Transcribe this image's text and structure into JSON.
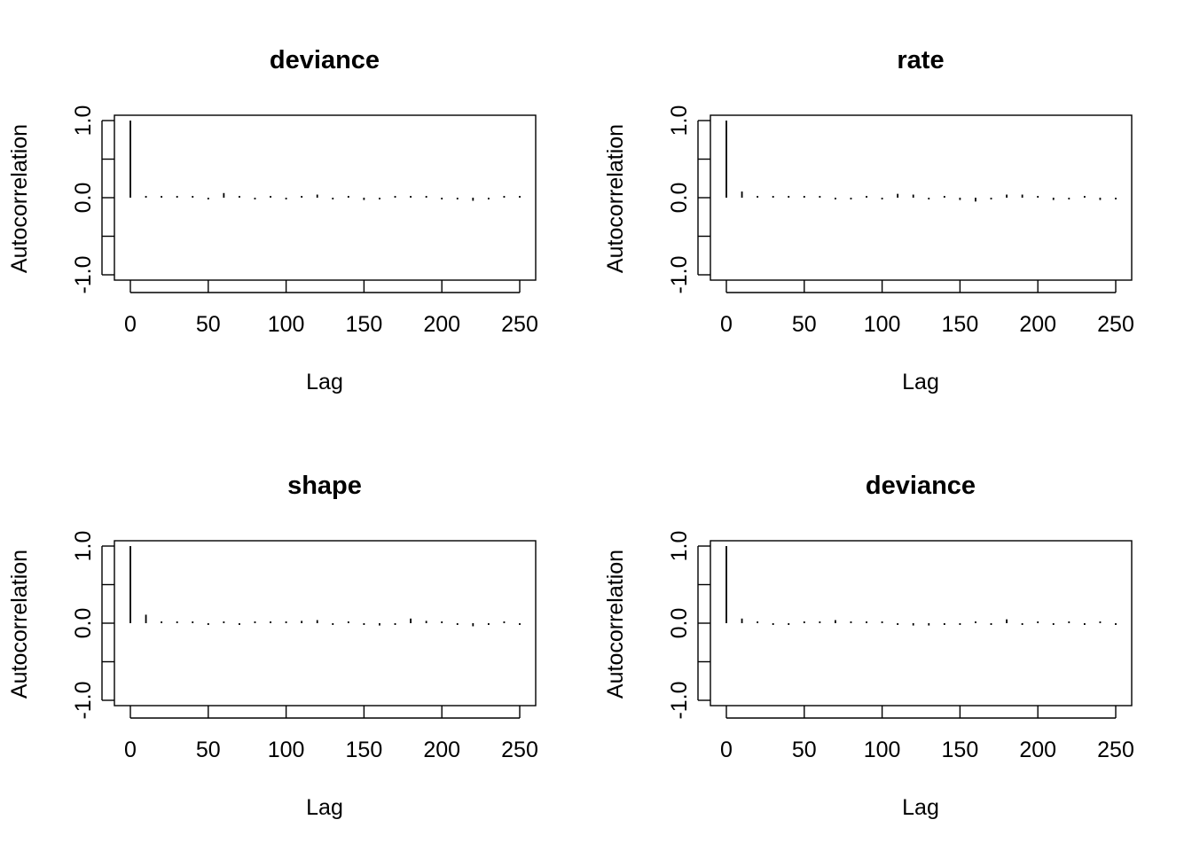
{
  "chart_data": [
    {
      "type": "bar",
      "title": "deviance",
      "xlabel": "Lag",
      "ylabel": "Autocorrelation",
      "xlim": [
        0,
        250
      ],
      "ylim": [
        -1,
        1
      ],
      "xticks": [
        "0",
        "50",
        "100",
        "150",
        "200",
        "250"
      ],
      "yticks": [
        "-1.0",
        "0.0",
        "1.0"
      ],
      "grid": false,
      "x": [
        0,
        10,
        20,
        30,
        40,
        50,
        60,
        70,
        80,
        90,
        100,
        110,
        120,
        130,
        140,
        150,
        160,
        170,
        180,
        190,
        200,
        210,
        220,
        230,
        240,
        250
      ],
      "values": [
        1.0,
        0.02,
        0.01,
        0.01,
        0.0,
        -0.01,
        0.06,
        0.01,
        -0.01,
        0.02,
        -0.01,
        0.02,
        0.04,
        -0.01,
        0.01,
        -0.03,
        -0.01,
        0.02,
        0.02,
        0.02,
        -0.01,
        -0.02,
        -0.04,
        -0.01,
        0.0,
        0.01
      ]
    },
    {
      "type": "bar",
      "title": "rate",
      "xlabel": "Lag",
      "ylabel": "Autocorrelation",
      "xlim": [
        0,
        250
      ],
      "ylim": [
        -1,
        1
      ],
      "xticks": [
        "0",
        "50",
        "100",
        "150",
        "200",
        "250"
      ],
      "yticks": [
        "-1.0",
        "0.0",
        "1.0"
      ],
      "grid": false,
      "x": [
        0,
        10,
        20,
        30,
        40,
        50,
        60,
        70,
        80,
        90,
        100,
        110,
        120,
        130,
        140,
        150,
        160,
        170,
        180,
        190,
        200,
        210,
        220,
        230,
        240,
        250
      ],
      "values": [
        1.0,
        0.08,
        0.01,
        0.0,
        0.0,
        0.01,
        0.02,
        -0.01,
        -0.01,
        0.02,
        -0.01,
        0.05,
        0.04,
        -0.01,
        0.0,
        -0.03,
        -0.05,
        -0.01,
        0.04,
        0.04,
        0.02,
        -0.03,
        -0.02,
        0.0,
        -0.03,
        -0.01
      ]
    },
    {
      "type": "bar",
      "title": "shape",
      "xlabel": "Lag",
      "ylabel": "Autocorrelation",
      "xlim": [
        0,
        250
      ],
      "ylim": [
        -1,
        1
      ],
      "xticks": [
        "0",
        "50",
        "100",
        "150",
        "200",
        "250"
      ],
      "yticks": [
        "-1.0",
        "0.0",
        "1.0"
      ],
      "grid": false,
      "x": [
        0,
        10,
        20,
        30,
        40,
        50,
        60,
        70,
        80,
        90,
        100,
        110,
        120,
        130,
        140,
        150,
        160,
        170,
        180,
        190,
        200,
        210,
        220,
        230,
        240,
        250
      ],
      "values": [
        1.0,
        0.11,
        0.02,
        0.01,
        0.0,
        -0.01,
        0.0,
        -0.01,
        0.0,
        0.02,
        0.02,
        0.03,
        0.04,
        -0.01,
        0.01,
        -0.02,
        -0.03,
        -0.02,
        0.06,
        0.03,
        0.01,
        -0.01,
        -0.04,
        -0.01,
        0.0,
        -0.01
      ]
    },
    {
      "type": "bar",
      "title": "deviance",
      "xlabel": "Lag",
      "ylabel": "Autocorrelation",
      "xlim": [
        0,
        250
      ],
      "ylim": [
        -1,
        1
      ],
      "xticks": [
        "0",
        "50",
        "100",
        "150",
        "200",
        "250"
      ],
      "yticks": [
        "-1.0",
        "0.0",
        "1.0"
      ],
      "grid": false,
      "x": [
        0,
        10,
        20,
        30,
        40,
        50,
        60,
        70,
        80,
        90,
        100,
        110,
        120,
        130,
        140,
        150,
        160,
        170,
        180,
        190,
        200,
        210,
        220,
        230,
        240,
        250
      ],
      "values": [
        1.0,
        0.06,
        0.02,
        -0.02,
        -0.01,
        0.02,
        0.01,
        0.04,
        0.01,
        0.02,
        0.01,
        -0.01,
        -0.03,
        -0.03,
        -0.02,
        -0.01,
        0.01,
        -0.02,
        0.05,
        -0.02,
        0.01,
        -0.01,
        0.0,
        -0.02,
        0.02,
        -0.01
      ]
    }
  ]
}
